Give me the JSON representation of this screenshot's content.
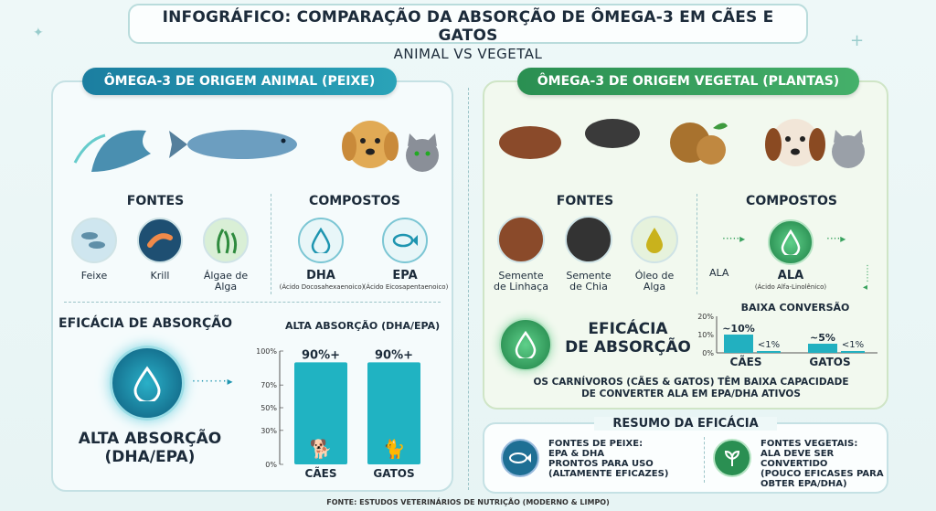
{
  "header": {
    "title": "INFOGRÁFICO: COMPARAÇÃO DA ABSORÇÃO DE ÔMEGA-3 EM CÃES E GATOS",
    "subtitle": "ANIMAL VS VEGETAL"
  },
  "left": {
    "pill": "ÔMEGA-3 DE ORIGEM ANIMAL (PEIXE)",
    "fontes_title": "FONTES",
    "compostos_title": "COMPOSTOS",
    "sources": [
      {
        "label": "Feixe",
        "icon": "fish-school-icon"
      },
      {
        "label": "Krill",
        "icon": "krill-icon"
      },
      {
        "label": "Álgae de\nAlga",
        "icon": "seaweed-icon"
      }
    ],
    "compounds": [
      {
        "label": "DHA",
        "sub": "(Ácido Docosahexaenoico)",
        "icon": "drop-icon"
      },
      {
        "label": "EPA",
        "sub": "(Ácido Eicosapentaenoico)",
        "icon": "fish-icon"
      }
    ],
    "eficacia_title": "EFICÁCIA DE ABSORÇÃO",
    "alta_title": "ALTA ABSORÇÃO (DHA/EPA)",
    "big_label": "ALTA ABSORÇÃO\n(DHA/EPA)",
    "chart_ticks": [
      "100%",
      "70%",
      "50%",
      "30%",
      "0%"
    ]
  },
  "right": {
    "pill": "ÔMEGA-3 DE ORIGEM VEGETAL (PLANTAS)",
    "fontes_title": "FONTES",
    "compostos_title": "COMPOSTOS",
    "sources": [
      {
        "label": "Semente\nde Linhaça",
        "icon": "flaxseed-icon"
      },
      {
        "label": "Semente\nde Chia",
        "icon": "chia-icon"
      },
      {
        "label": "Óleo de\nAlga",
        "icon": "oil-drop-icon"
      }
    ],
    "ala_side": "ALA",
    "compound": {
      "label": "ALA",
      "sub": "(Ácido Alfa-Linolênico)"
    },
    "baixa": "BAIXA CONVERSÃO",
    "eficacia": "EFICÁCIA\nDE ABSORÇÃO",
    "chart_ticks": [
      "20%",
      "10%",
      "0%"
    ],
    "note": "OS CARNÍVOROS (CÃES & GATOS) TÊM BAIXA CAPACIDADE\nDE CONVERTER ALA EM EPA/DHA ATIVOS"
  },
  "summary": {
    "title": "RESUMO DA EFICÁCIA",
    "animal": "FONTES DE PEIXE:\nEPA & DHA\nPRONTOS PARA USO\n(ALTAMENTE EFICAZES)",
    "vegetal": "FONTES VEGETAIS:\nALA DEVE SER CONVERTIDO\n(POUCO EFICASES PARA\nOBTER EPA/DHA)"
  },
  "footer": "FONTE: ESTUDOS VETERINÁRIOS DE NUTRIÇÃO (MODERNO & LIMPO)",
  "colors": {
    "teal": "#1e95b0",
    "green": "#3aa35f",
    "dark": "#1c2b3a"
  },
  "chart_data": [
    {
      "type": "bar",
      "categories": [
        "CÃES",
        "GATOS"
      ],
      "values": [
        90,
        90
      ],
      "data_labels": [
        "90%+",
        "90%+"
      ],
      "ylim": [
        0,
        100
      ],
      "ytick_labels": [
        "100%",
        "70%",
        "50%",
        "30%",
        "0%"
      ]
    },
    {
      "type": "bar",
      "categories": [
        "CÃES",
        "GATOS"
      ],
      "values": [
        10,
        5
      ],
      "data_labels": [
        "~10%",
        "~5%"
      ],
      "secondary_labels": [
        "<1%",
        "<1%"
      ],
      "ylim": [
        0,
        20
      ],
      "ytick_labels": [
        "20%",
        "10%",
        "0%"
      ]
    }
  ]
}
